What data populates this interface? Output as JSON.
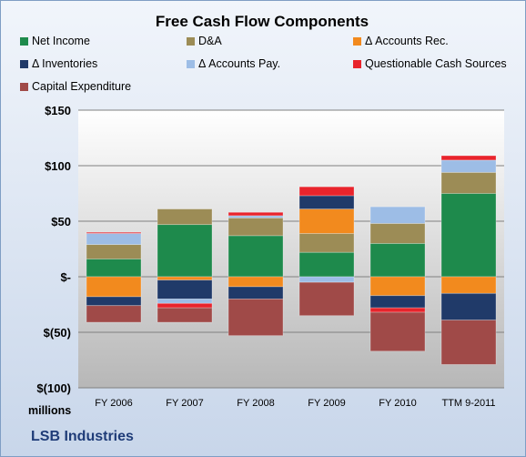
{
  "chart_data": {
    "type": "bar",
    "stacked": true,
    "title": "Free Cash Flow Components",
    "categories": [
      "FY 2006",
      "FY 2007",
      "FY 2008",
      "FY 2009",
      "FY 2010",
      "TTM 9-2011"
    ],
    "ylim": [
      -100,
      150
    ],
    "yticks": [
      {
        "value": 150,
        "label": "$150"
      },
      {
        "value": 100,
        "label": "$100"
      },
      {
        "value": 50,
        "label": "$50"
      },
      {
        "value": 0,
        "label": "$-"
      },
      {
        "value": -50,
        "label": "$(50)"
      },
      {
        "value": -100,
        "label": "$(100)"
      }
    ],
    "ylabel": "millions",
    "grid": true,
    "legend_position": "top",
    "series": [
      {
        "name": "Net Income",
        "color": "#1e8a4c",
        "values": [
          16,
          47,
          37,
          22,
          30,
          75
        ]
      },
      {
        "name": "D&A",
        "color": "#9c8c56",
        "values": [
          13,
          14,
          16,
          17,
          18,
          19
        ]
      },
      {
        "name": "Δ Accounts Rec.",
        "color": "#f28a1e",
        "values": [
          -18,
          -3,
          -9,
          22,
          -17,
          -15
        ]
      },
      {
        "name": "Δ Inventories",
        "color": "#203a69",
        "values": [
          -8,
          -17,
          -11,
          12,
          -11,
          -24
        ]
      },
      {
        "name": "Δ Accounts Pay.",
        "color": "#9dbde6",
        "values": [
          10,
          -4,
          2,
          -5,
          15,
          11
        ]
      },
      {
        "name": "Questionable Cash Sources",
        "color": "#e8242c",
        "values": [
          1,
          -4,
          3,
          8,
          -4,
          4
        ]
      },
      {
        "name": "Capital Expenditure",
        "color": "#a04a48",
        "values": [
          -15,
          -13,
          -33,
          -30,
          -35,
          -40
        ]
      }
    ]
  },
  "footer": {
    "company": "LSB Industries"
  }
}
